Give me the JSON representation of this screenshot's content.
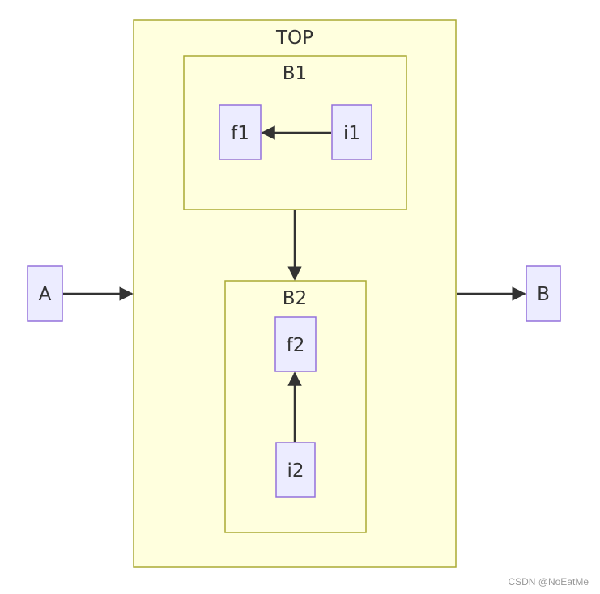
{
  "colors": {
    "cluster_fill": "#ffffde",
    "cluster_stroke": "#aaaa33",
    "node_fill": "#ececff",
    "node_stroke": "#9370db",
    "edge": "#333333"
  },
  "clusters": {
    "top": "TOP",
    "b1": "B1",
    "b2": "B2"
  },
  "nodes": {
    "a": "A",
    "b": "B",
    "f1": "f1",
    "i1": "i1",
    "f2": "f2",
    "i2": "i2"
  },
  "edges": [
    {
      "from": "i1",
      "to": "f1"
    },
    {
      "from": "i2",
      "to": "f2"
    },
    {
      "from": "B1",
      "to": "B2"
    },
    {
      "from": "A",
      "to": "TOP"
    },
    {
      "from": "TOP",
      "to": "B"
    }
  ],
  "watermark": "CSDN @NoEatMe"
}
